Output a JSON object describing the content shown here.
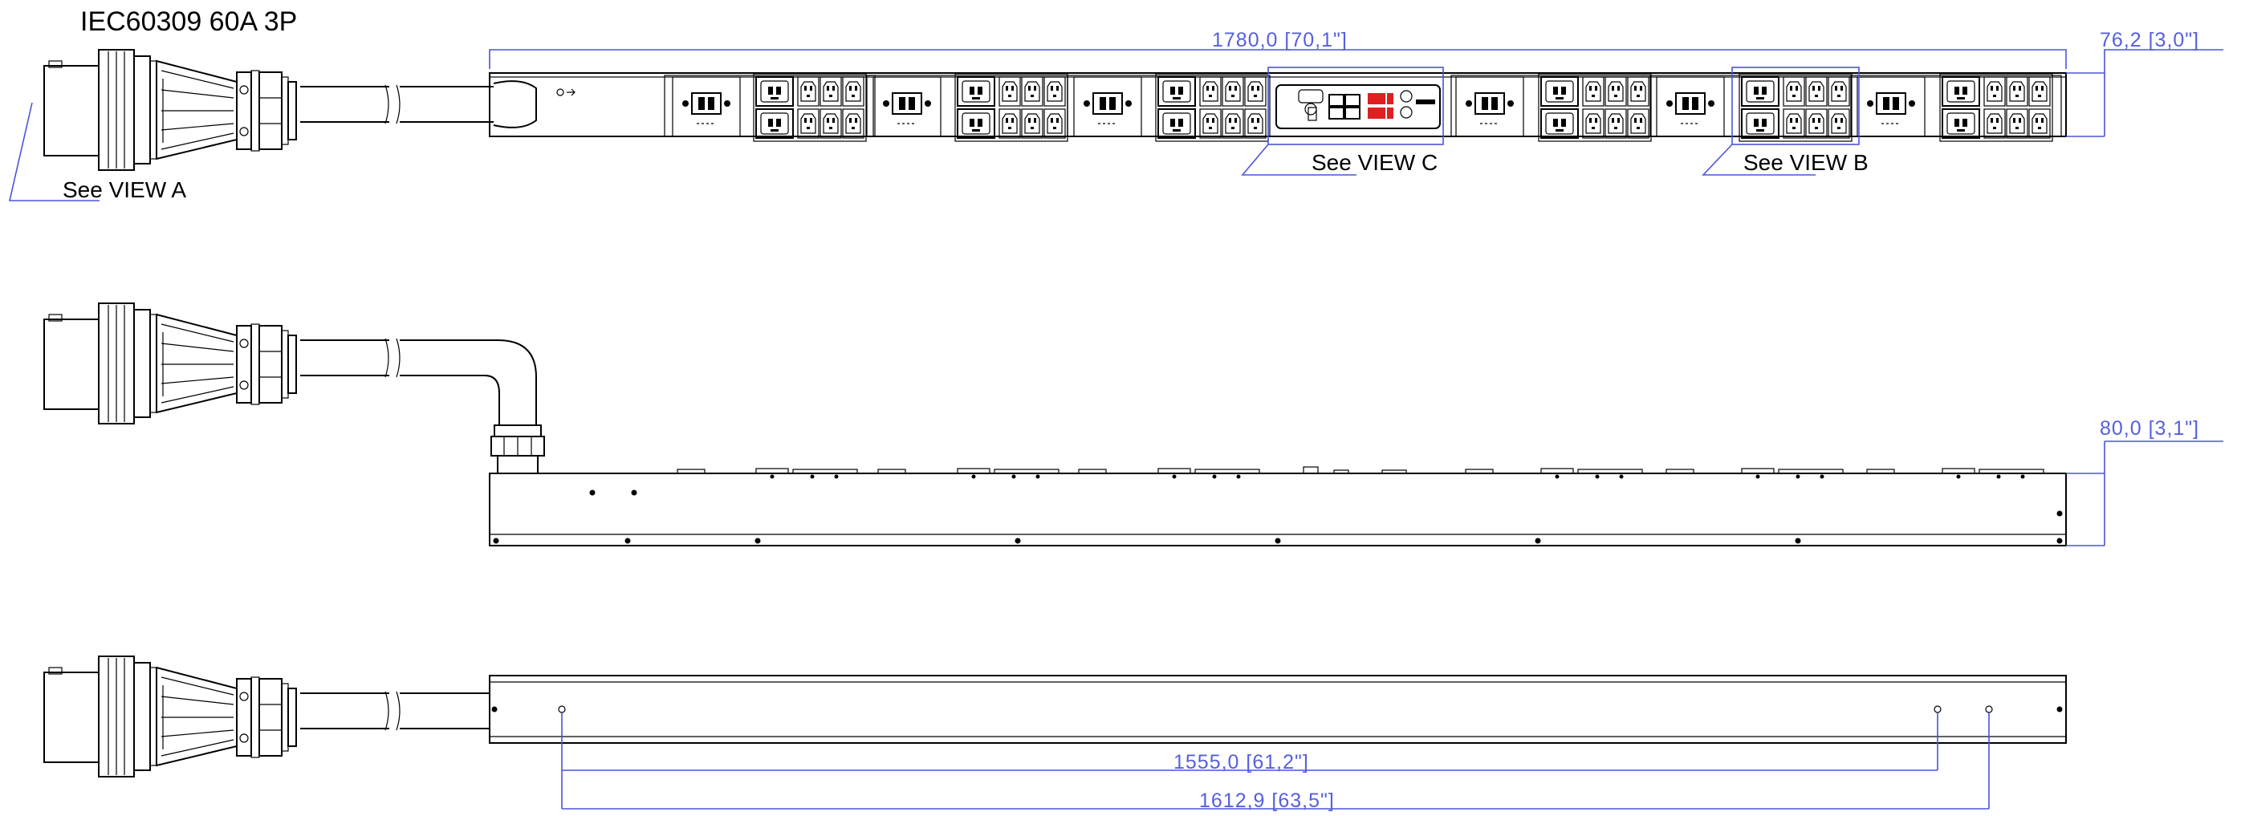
{
  "title": "IEC60309 60A 3P",
  "callouts": {
    "view_a": "See VIEW A",
    "view_b": "See VIEW B",
    "view_c": "See VIEW C"
  },
  "dimensions": {
    "length": "1780,0  [70,1\"]",
    "width_front": "76,2  [3,0\"]",
    "depth_side": "80,0  [3,1\"]",
    "mount_inner": "1555,0  [61,2\"]",
    "mount_outer": "1612,9  [63,5\"]"
  },
  "colors": {
    "line": "#000000",
    "dimension": "#4a55d8",
    "display": "#e02020"
  },
  "icons": {
    "plug": "iec60309-plug-icon",
    "breaker": "circuit-breaker-icon",
    "outlet_c19": "c19-outlet-icon",
    "outlet_c13": "c13-outlet-icon",
    "controller": "controller-module-icon"
  }
}
